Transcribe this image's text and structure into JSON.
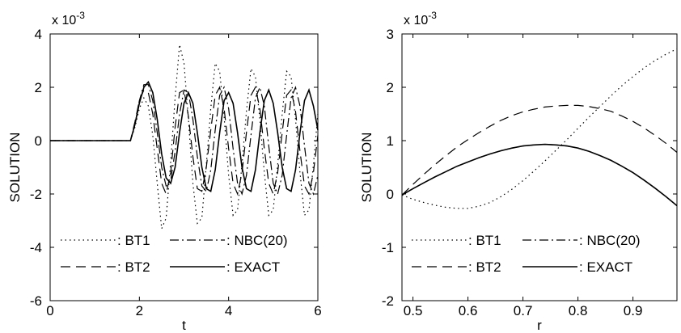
{
  "chart_data": [
    {
      "type": "line",
      "ylabel": "SOLUTION",
      "xlabel": "t",
      "exponent": "x 10",
      "exponent_power": "-3",
      "xlim": [
        0,
        6
      ],
      "ylim": [
        -6,
        4
      ],
      "xticks": [
        0,
        2,
        4,
        6
      ],
      "yticks": [
        -6,
        -4,
        -2,
        0,
        2,
        4
      ],
      "grid": false,
      "legend_position": "bottom",
      "series": [
        {
          "name": ": BT1",
          "style": "dotted",
          "x": [
            0,
            1.8,
            1.9,
            2.0,
            2.1,
            2.2,
            2.3,
            2.4,
            2.5,
            2.6,
            2.7,
            2.8,
            2.9,
            3.0,
            3.1,
            3.2,
            3.3,
            3.4,
            3.5,
            3.6,
            3.7,
            3.8,
            3.9,
            4.0,
            4.1,
            4.2,
            4.3,
            4.4,
            4.5,
            4.6,
            4.7,
            4.8,
            4.9,
            5.0,
            5.1,
            5.2,
            5.3,
            5.4,
            5.5,
            5.6,
            5.7,
            5.8,
            5.9,
            6.0
          ],
          "y": [
            0,
            0,
            0.5,
            1.2,
            1.6,
            1.3,
            0.2,
            -1.6,
            -3.3,
            -2.9,
            -0.8,
            1.6,
            3.6,
            2.9,
            0.8,
            -1.6,
            -3.1,
            -2.9,
            -0.9,
            1.2,
            2.9,
            2.6,
            0.9,
            -1.3,
            -2.8,
            -2.6,
            -0.9,
            1.1,
            2.7,
            2.4,
            0.8,
            -1.2,
            -2.8,
            -2.6,
            -0.9,
            1.0,
            2.6,
            2.4,
            0.8,
            -1.2,
            -2.8,
            -2.6,
            -0.9,
            1.0
          ]
        },
        {
          "name": ": BT2",
          "style": "dashed",
          "x": [
            0,
            1.8,
            1.9,
            2.0,
            2.1,
            2.2,
            2.3,
            2.4,
            2.5,
            2.6,
            2.7,
            2.8,
            2.9,
            3.0,
            3.1,
            3.2,
            3.3,
            3.4,
            3.5,
            3.6,
            3.7,
            3.8,
            3.9,
            4.0,
            4.1,
            4.2,
            4.3,
            4.4,
            4.5,
            4.6,
            4.7,
            4.8,
            4.9,
            5.0,
            5.1,
            5.2,
            5.3,
            5.4,
            5.5,
            5.6,
            5.7,
            5.8,
            5.9,
            6.0
          ],
          "y": [
            0,
            0,
            0.7,
            1.5,
            1.9,
            1.8,
            1.0,
            -0.3,
            -1.6,
            -2.0,
            -1.2,
            0.5,
            1.8,
            1.9,
            0.9,
            -0.6,
            -1.8,
            -1.9,
            -1.0,
            0.4,
            1.7,
            2.0,
            1.2,
            -0.3,
            -1.6,
            -2.0,
            -1.2,
            0.3,
            1.7,
            2.0,
            1.2,
            -0.3,
            -1.6,
            -2.0,
            -1.2,
            0.3,
            1.7,
            1.9,
            1.1,
            -0.4,
            -1.7,
            -2.0,
            -1.2,
            0.2
          ]
        },
        {
          "name": ": NBC(20)",
          "style": "dashdot",
          "x": [
            0,
            1.8,
            1.9,
            2.0,
            2.1,
            2.2,
            2.3,
            2.4,
            2.5,
            2.6,
            2.7,
            2.8,
            2.9,
            3.0,
            3.1,
            3.2,
            3.3,
            3.4,
            3.5,
            3.6,
            3.7,
            3.8,
            3.9,
            4.0,
            4.1,
            4.2,
            4.3,
            4.4,
            4.5,
            4.6,
            4.7,
            4.8,
            4.9,
            5.0,
            5.1,
            5.2,
            5.3,
            5.4,
            5.5,
            5.6,
            5.7,
            5.8,
            5.9,
            6.0
          ],
          "y": [
            0,
            0,
            0.6,
            1.5,
            2.1,
            2.1,
            1.5,
            0.3,
            -1.0,
            -1.7,
            -1.5,
            -0.4,
            1.0,
            1.9,
            1.8,
            0.8,
            -0.6,
            -1.7,
            -1.9,
            -1.1,
            0.4,
            1.7,
            2.0,
            1.2,
            -0.3,
            -1.6,
            -2.0,
            -1.3,
            0.2,
            1.6,
            2.0,
            1.3,
            -0.2,
            -1.6,
            -2.0,
            -1.3,
            0.2,
            1.6,
            2.0,
            1.3,
            -0.2,
            -1.6,
            -2.0,
            -1.3
          ]
        },
        {
          "name": ": EXACT",
          "style": "solid",
          "x": [
            0,
            1.8,
            1.9,
            2.0,
            2.1,
            2.2,
            2.3,
            2.4,
            2.5,
            2.6,
            2.7,
            2.8,
            2.9,
            3.0,
            3.1,
            3.2,
            3.3,
            3.4,
            3.5,
            3.6,
            3.7,
            3.8,
            3.9,
            4.0,
            4.1,
            4.2,
            4.3,
            4.4,
            4.5,
            4.6,
            4.7,
            4.8,
            4.9,
            5.0,
            5.1,
            5.2,
            5.3,
            5.4,
            5.5,
            5.6,
            5.7,
            5.8,
            5.9,
            6.0
          ],
          "y": [
            0,
            0,
            0.6,
            1.4,
            2.0,
            2.2,
            1.8,
            0.8,
            -0.5,
            -1.4,
            -1.6,
            -1.0,
            0.3,
            1.4,
            1.8,
            1.4,
            0.3,
            -1.0,
            -1.8,
            -1.9,
            -1.1,
            0.3,
            1.5,
            1.8,
            1.4,
            0.3,
            -1.0,
            -1.8,
            -1.9,
            -1.1,
            0.3,
            1.5,
            1.9,
            1.4,
            0.3,
            -1.0,
            -1.8,
            -1.9,
            -1.1,
            0.3,
            1.5,
            1.9,
            1.3,
            0.4
          ]
        }
      ]
    },
    {
      "type": "line",
      "ylabel": "SOLUTION",
      "xlabel": "r",
      "exponent": "x 10",
      "exponent_power": "-3",
      "xlim": [
        0.48,
        0.98
      ],
      "ylim": [
        -2,
        3
      ],
      "xticks": [
        0.5,
        0.6,
        0.7,
        0.8,
        0.9
      ],
      "yticks": [
        -2,
        -1,
        0,
        1,
        2,
        3
      ],
      "grid": false,
      "legend_position": "bottom",
      "series": [
        {
          "name": ": BT1",
          "style": "dotted",
          "x": [
            0.48,
            0.5,
            0.52,
            0.54,
            0.56,
            0.58,
            0.6,
            0.62,
            0.64,
            0.66,
            0.68,
            0.7,
            0.72,
            0.74,
            0.76,
            0.78,
            0.8,
            0.82,
            0.84,
            0.86,
            0.88,
            0.9,
            0.92,
            0.94,
            0.96,
            0.98
          ],
          "y": [
            -0.02,
            -0.1,
            -0.16,
            -0.21,
            -0.25,
            -0.27,
            -0.27,
            -0.23,
            -0.16,
            -0.05,
            0.09,
            0.25,
            0.43,
            0.62,
            0.82,
            1.02,
            1.23,
            1.44,
            1.64,
            1.84,
            2.03,
            2.2,
            2.36,
            2.5,
            2.62,
            2.72
          ]
        },
        {
          "name": ": BT2",
          "style": "dashed",
          "x": [
            0.48,
            0.5,
            0.52,
            0.54,
            0.56,
            0.58,
            0.6,
            0.62,
            0.64,
            0.66,
            0.68,
            0.7,
            0.72,
            0.74,
            0.76,
            0.78,
            0.8,
            0.82,
            0.84,
            0.86,
            0.88,
            0.9,
            0.92,
            0.94,
            0.96,
            0.98
          ],
          "y": [
            -0.02,
            0.18,
            0.37,
            0.55,
            0.72,
            0.88,
            1.02,
            1.15,
            1.27,
            1.38,
            1.47,
            1.54,
            1.59,
            1.63,
            1.65,
            1.66,
            1.66,
            1.64,
            1.6,
            1.55,
            1.46,
            1.36,
            1.24,
            1.1,
            0.95,
            0.78
          ]
        },
        {
          "name": ": NBC(20)",
          "style": "dashdot",
          "x": [
            0.48,
            0.5,
            0.52,
            0.54,
            0.56,
            0.58,
            0.6,
            0.62,
            0.64,
            0.66,
            0.68,
            0.7,
            0.72,
            0.74,
            0.76,
            0.78,
            0.8,
            0.82,
            0.84,
            0.86,
            0.88,
            0.9,
            0.92,
            0.94,
            0.96,
            0.98
          ],
          "y": [
            -0.02,
            0.1,
            0.21,
            0.32,
            0.42,
            0.52,
            0.6,
            0.68,
            0.75,
            0.81,
            0.86,
            0.9,
            0.92,
            0.93,
            0.92,
            0.9,
            0.86,
            0.8,
            0.72,
            0.63,
            0.52,
            0.4,
            0.26,
            0.11,
            -0.05,
            -0.22
          ]
        },
        {
          "name": ": EXACT",
          "style": "solid",
          "x": [
            0.48,
            0.5,
            0.52,
            0.54,
            0.56,
            0.58,
            0.6,
            0.62,
            0.64,
            0.66,
            0.68,
            0.7,
            0.72,
            0.74,
            0.76,
            0.78,
            0.8,
            0.82,
            0.84,
            0.86,
            0.88,
            0.9,
            0.92,
            0.94,
            0.96,
            0.98
          ],
          "y": [
            -0.02,
            0.1,
            0.21,
            0.32,
            0.42,
            0.52,
            0.6,
            0.68,
            0.75,
            0.81,
            0.86,
            0.9,
            0.92,
            0.93,
            0.92,
            0.9,
            0.86,
            0.8,
            0.72,
            0.63,
            0.52,
            0.4,
            0.26,
            0.11,
            -0.05,
            -0.22
          ]
        }
      ]
    }
  ]
}
